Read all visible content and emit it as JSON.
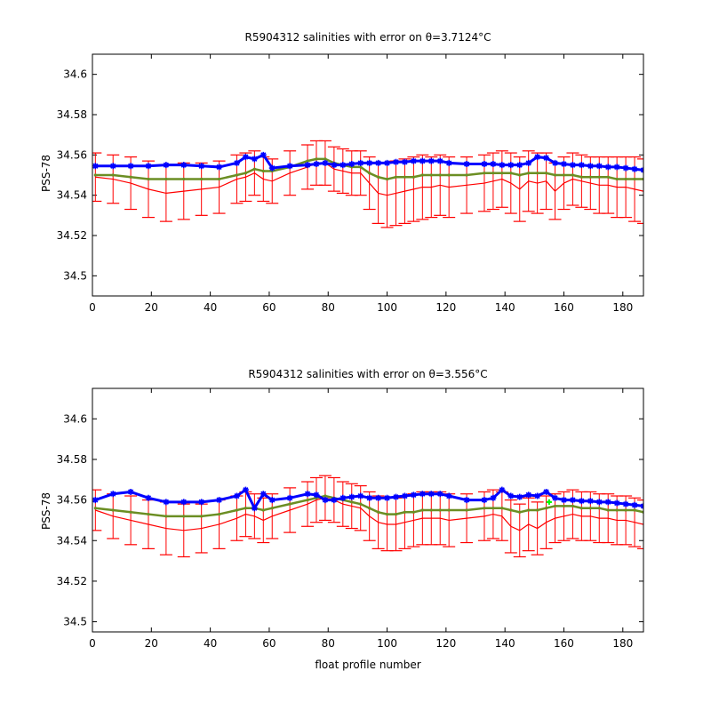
{
  "chart_data": [
    {
      "type": "line",
      "title": "R5904312 salinities with error on θ=3.7124°C",
      "xlabel": "",
      "ylabel": "PSS-78",
      "xlim": [
        0,
        187
      ],
      "ylim": [
        34.49,
        34.61
      ],
      "xticks": [
        0,
        20,
        40,
        60,
        80,
        100,
        120,
        140,
        160,
        180
      ],
      "yticks": [
        34.5,
        34.52,
        34.54,
        34.56,
        34.58,
        34.6
      ],
      "ytick_labels": [
        "34.5",
        "34.52",
        "34.54",
        "34.56",
        "34.58",
        "34.6"
      ],
      "grid": false,
      "x": [
        1,
        7,
        13,
        19,
        25,
        31,
        37,
        43,
        49,
        52,
        55,
        58,
        61,
        67,
        73,
        76,
        79,
        82,
        85,
        88,
        91,
        94,
        97,
        100,
        103,
        106,
        109,
        112,
        115,
        118,
        121,
        127,
        133,
        136,
        139,
        142,
        145,
        148,
        151,
        154,
        157,
        160,
        163,
        166,
        169,
        172,
        175,
        178,
        181,
        184,
        187
      ],
      "series": [
        {
          "color": "#ff0000",
          "marks": "line+errorbars",
          "values": [
            34.549,
            34.548,
            34.546,
            34.543,
            34.541,
            34.542,
            34.543,
            34.544,
            34.548,
            34.549,
            34.551,
            34.548,
            34.547,
            34.551,
            34.554,
            34.556,
            34.556,
            34.553,
            34.552,
            34.551,
            34.551,
            34.546,
            34.541,
            34.54,
            34.541,
            34.542,
            34.543,
            34.544,
            34.544,
            34.545,
            34.544,
            34.545,
            34.546,
            34.547,
            34.548,
            34.546,
            34.543,
            34.547,
            34.546,
            34.547,
            34.542,
            34.546,
            34.548,
            34.547,
            34.546,
            34.545,
            34.545,
            34.544,
            34.544,
            34.543,
            34.542
          ],
          "err": [
            0.012,
            0.012,
            0.013,
            0.014,
            0.014,
            0.014,
            0.013,
            0.013,
            0.012,
            0.012,
            0.011,
            0.011,
            0.011,
            0.011,
            0.011,
            0.011,
            0.011,
            0.011,
            0.011,
            0.011,
            0.011,
            0.013,
            0.015,
            0.016,
            0.016,
            0.016,
            0.016,
            0.016,
            0.015,
            0.015,
            0.015,
            0.014,
            0.014,
            0.014,
            0.014,
            0.015,
            0.016,
            0.015,
            0.015,
            0.014,
            0.014,
            0.013,
            0.013,
            0.013,
            0.013,
            0.014,
            0.014,
            0.015,
            0.015,
            0.016,
            0.016
          ]
        },
        {
          "color": "#6b8e23",
          "marks": "line",
          "values": [
            34.55,
            34.55,
            34.549,
            34.548,
            34.548,
            34.548,
            34.548,
            34.548,
            34.55,
            34.551,
            34.553,
            34.552,
            34.552,
            34.554,
            34.557,
            34.558,
            34.558,
            34.556,
            34.555,
            34.554,
            34.554,
            34.551,
            34.549,
            34.548,
            34.549,
            34.549,
            34.549,
            34.55,
            34.55,
            34.55,
            34.55,
            34.55,
            34.551,
            34.551,
            34.551,
            34.551,
            34.55,
            34.551,
            34.551,
            34.551,
            34.55,
            34.55,
            34.55,
            34.549,
            34.549,
            34.549,
            34.549,
            34.548,
            34.548,
            34.548,
            34.548
          ]
        },
        {
          "color": "#0000ff",
          "marks": "line+markers",
          "values": [
            34.5545,
            34.5545,
            34.5545,
            34.5545,
            34.555,
            34.555,
            34.5545,
            34.554,
            34.556,
            34.559,
            34.558,
            34.56,
            34.5535,
            34.5545,
            34.555,
            34.5555,
            34.556,
            34.555,
            34.555,
            34.5555,
            34.556,
            34.556,
            34.556,
            34.556,
            34.5565,
            34.5565,
            34.557,
            34.557,
            34.557,
            34.557,
            34.556,
            34.5555,
            34.5555,
            34.5555,
            34.555,
            34.555,
            34.555,
            34.556,
            34.559,
            34.5585,
            34.556,
            34.5555,
            34.555,
            34.555,
            34.5545,
            34.5545,
            34.554,
            34.554,
            34.5535,
            34.553,
            34.5525
          ]
        }
      ]
    },
    {
      "type": "line",
      "title": "R5904312 salinities with error on θ=3.556°C",
      "xlabel": "float profile number",
      "ylabel": "PSS-78",
      "xlim": [
        0,
        187
      ],
      "ylim": [
        34.495,
        34.615
      ],
      "xticks": [
        0,
        20,
        40,
        60,
        80,
        100,
        120,
        140,
        160,
        180
      ],
      "yticks": [
        34.5,
        34.52,
        34.54,
        34.56,
        34.58,
        34.6
      ],
      "ytick_labels": [
        "34.5",
        "34.52",
        "34.54",
        "34.56",
        "34.58",
        "34.6"
      ],
      "grid": false,
      "x": [
        1,
        7,
        13,
        19,
        25,
        31,
        37,
        43,
        49,
        52,
        55,
        58,
        61,
        67,
        73,
        76,
        79,
        82,
        85,
        88,
        91,
        94,
        97,
        100,
        103,
        106,
        109,
        112,
        115,
        118,
        121,
        127,
        133,
        136,
        139,
        142,
        145,
        148,
        151,
        154,
        157,
        160,
        163,
        166,
        169,
        172,
        175,
        178,
        181,
        184,
        187
      ],
      "series": [
        {
          "color": "#ff0000",
          "marks": "line+errorbars",
          "values": [
            34.555,
            34.552,
            34.55,
            34.548,
            34.546,
            34.545,
            34.546,
            34.548,
            34.551,
            34.553,
            34.552,
            34.55,
            34.552,
            34.555,
            34.558,
            34.56,
            34.561,
            34.56,
            34.558,
            34.557,
            34.556,
            34.552,
            34.549,
            34.548,
            34.548,
            34.549,
            34.55,
            34.551,
            34.551,
            34.551,
            34.55,
            34.551,
            34.552,
            34.553,
            34.552,
            34.547,
            34.545,
            34.548,
            34.546,
            34.549,
            34.551,
            34.552,
            34.553,
            34.552,
            34.552,
            34.551,
            34.551,
            34.55,
            34.55,
            34.549,
            34.548
          ],
          "err": [
            0.01,
            0.011,
            0.012,
            0.012,
            0.013,
            0.013,
            0.012,
            0.012,
            0.011,
            0.011,
            0.011,
            0.011,
            0.011,
            0.011,
            0.011,
            0.011,
            0.011,
            0.011,
            0.011,
            0.011,
            0.011,
            0.012,
            0.013,
            0.013,
            0.013,
            0.013,
            0.013,
            0.013,
            0.013,
            0.013,
            0.013,
            0.012,
            0.012,
            0.012,
            0.012,
            0.013,
            0.013,
            0.013,
            0.013,
            0.013,
            0.012,
            0.012,
            0.012,
            0.012,
            0.012,
            0.012,
            0.012,
            0.012,
            0.012,
            0.012,
            0.012
          ]
        },
        {
          "color": "#6b8e23",
          "marks": "line",
          "values": [
            34.556,
            34.555,
            34.554,
            34.553,
            34.552,
            34.552,
            34.552,
            34.553,
            34.555,
            34.556,
            34.556,
            34.555,
            34.556,
            34.558,
            34.56,
            34.561,
            34.562,
            34.561,
            34.56,
            34.559,
            34.558,
            34.556,
            34.554,
            34.553,
            34.553,
            34.554,
            34.554,
            34.555,
            34.555,
            34.555,
            34.555,
            34.555,
            34.556,
            34.556,
            34.556,
            34.555,
            34.554,
            34.555,
            34.555,
            34.556,
            34.557,
            34.557,
            34.557,
            34.556,
            34.556,
            34.556,
            34.555,
            34.555,
            34.555,
            34.555,
            34.554
          ],
          "highlight": {
            "x": 155,
            "value": 34.559,
            "color": "#00ff00"
          }
        },
        {
          "color": "#0000ff",
          "marks": "line+markers",
          "values": [
            34.56,
            34.563,
            34.564,
            34.561,
            34.559,
            34.559,
            34.559,
            34.56,
            34.562,
            34.565,
            34.556,
            34.563,
            34.56,
            34.561,
            34.563,
            34.5625,
            34.56,
            34.56,
            34.561,
            34.5615,
            34.562,
            34.561,
            34.561,
            34.561,
            34.5615,
            34.562,
            34.5625,
            34.563,
            34.563,
            34.563,
            34.562,
            34.56,
            34.56,
            34.561,
            34.565,
            34.562,
            34.5615,
            34.5625,
            34.562,
            34.564,
            34.561,
            34.56,
            34.56,
            34.5595,
            34.5595,
            34.559,
            34.559,
            34.5585,
            34.558,
            34.5575,
            34.557
          ]
        }
      ]
    }
  ]
}
